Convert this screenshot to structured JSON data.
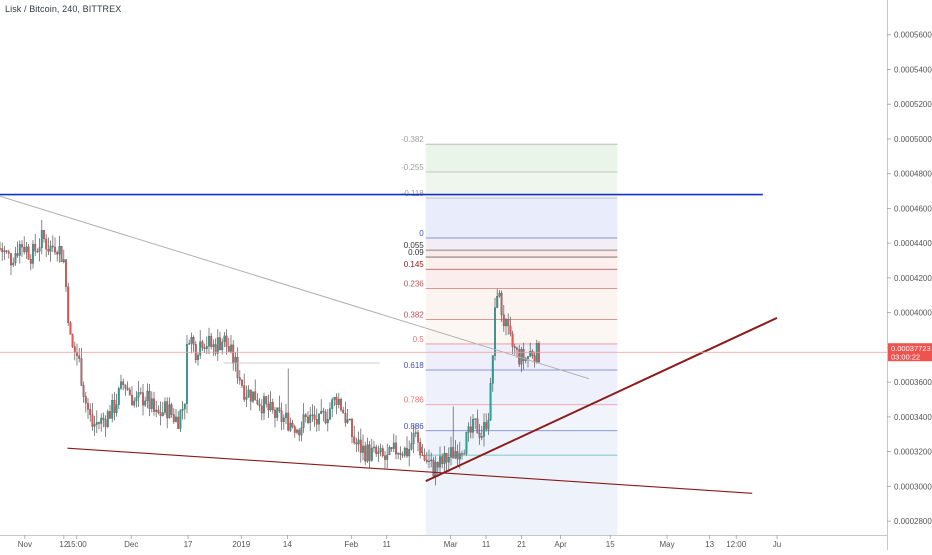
{
  "header": {
    "symbol_title": "Lisk / Bitcoin, 240, BITTREX"
  },
  "colors": {
    "bull": "#26a69a",
    "bear": "#ef5350",
    "candle": "#535353",
    "resistance": "#1530c8",
    "trendline": "#8b1a1a",
    "price_label_bg": "#ef5350"
  },
  "chart_data": {
    "type": "candlestick",
    "y_unit": "BTC",
    "ylim": [
      0.000272,
      0.00058
    ],
    "xlim": [
      "2018-10-25",
      "2019-07-02"
    ],
    "y_ticks": [
      "0.00028000",
      "0.00030000",
      "0.00032000",
      "0.00034000",
      "0.00036000",
      "0.00038000",
      "0.00040000",
      "0.00042000",
      "0.00044000",
      "0.00046000",
      "0.00048000",
      "0.00050000",
      "0.00052000",
      "0.00054000",
      "0.00056000"
    ],
    "x_ticks": [
      {
        "label": "Nov",
        "date": "2018-11-01"
      },
      {
        "label": "12",
        "date": "2018-11-12"
      },
      {
        "label": "15:00",
        "date": "2018-11-15T15:00"
      },
      {
        "label": "Dec",
        "date": "2018-12-01"
      },
      {
        "label": "17",
        "date": "2018-12-17"
      },
      {
        "label": "2019",
        "date": "2019-01-01"
      },
      {
        "label": "14",
        "date": "2019-01-14"
      },
      {
        "label": "Feb",
        "date": "2019-02-01"
      },
      {
        "label": "11",
        "date": "2019-02-11"
      },
      {
        "label": "Mar",
        "date": "2019-03-01"
      },
      {
        "label": "11",
        "date": "2019-03-11"
      },
      {
        "label": "21",
        "date": "2019-03-21"
      },
      {
        "label": "Apr",
        "date": "2019-04-01"
      },
      {
        "label": "15",
        "date": "2019-04-15"
      },
      {
        "label": "May",
        "date": "2019-05-01"
      },
      {
        "label": "13",
        "date": "2019-05-13"
      },
      {
        "label": "12:00",
        "date": "2019-05-20T12:00"
      },
      {
        "label": "Ju",
        "date": "2019-06-01"
      }
    ],
    "price_path": [
      {
        "date": "2018-10-25",
        "close": 0.000437
      },
      {
        "date": "2018-10-28",
        "close": 0.000431
      },
      {
        "date": "2018-10-31",
        "close": 0.00044
      },
      {
        "date": "2018-11-03",
        "close": 0.000433
      },
      {
        "date": "2018-11-06",
        "close": 0.000443
      },
      {
        "date": "2018-11-08",
        "close": 0.000437
      },
      {
        "date": "2018-11-10",
        "close": 0.00044
      },
      {
        "date": "2018-11-12",
        "close": 0.00043
      },
      {
        "date": "2018-11-13",
        "close": 0.000405
      },
      {
        "date": "2018-11-14",
        "close": 0.00038
      },
      {
        "date": "2018-11-16",
        "close": 0.000375
      },
      {
        "date": "2018-11-18",
        "close": 0.00035
      },
      {
        "date": "2018-11-20",
        "close": 0.000335
      },
      {
        "date": "2018-11-23",
        "close": 0.000338
      },
      {
        "date": "2018-11-26",
        "close": 0.000345
      },
      {
        "date": "2018-11-29",
        "close": 0.00036
      },
      {
        "date": "2018-12-02",
        "close": 0.000348
      },
      {
        "date": "2018-12-05",
        "close": 0.000352
      },
      {
        "date": "2018-12-08",
        "close": 0.00034
      },
      {
        "date": "2018-12-11",
        "close": 0.000345
      },
      {
        "date": "2018-12-14",
        "close": 0.000338
      },
      {
        "date": "2018-12-16",
        "close": 0.000348
      },
      {
        "date": "2018-12-17",
        "close": 0.00039
      },
      {
        "date": "2018-12-19",
        "close": 0.000378
      },
      {
        "date": "2018-12-21",
        "close": 0.000385
      },
      {
        "date": "2018-12-24",
        "close": 0.00038
      },
      {
        "date": "2018-12-27",
        "close": 0.000385
      },
      {
        "date": "2018-12-30",
        "close": 0.000372
      },
      {
        "date": "2019-01-02",
        "close": 0.000355
      },
      {
        "date": "2019-01-05",
        "close": 0.000352
      },
      {
        "date": "2019-01-08",
        "close": 0.000345
      },
      {
        "date": "2019-01-11",
        "close": 0.00034
      },
      {
        "date": "2019-01-14",
        "close": 0.000338
      },
      {
        "date": "2019-01-17",
        "close": 0.000334
      },
      {
        "date": "2019-01-20",
        "close": 0.00034
      },
      {
        "date": "2019-01-23",
        "close": 0.000336
      },
      {
        "date": "2019-01-26",
        "close": 0.000345
      },
      {
        "date": "2019-01-28",
        "close": 0.000352
      },
      {
        "date": "2019-01-30",
        "close": 0.000342
      },
      {
        "date": "2019-02-02",
        "close": 0.000325
      },
      {
        "date": "2019-02-05",
        "close": 0.00032
      },
      {
        "date": "2019-02-08",
        "close": 0.000318
      },
      {
        "date": "2019-02-11",
        "close": 0.000315
      },
      {
        "date": "2019-02-14",
        "close": 0.000322
      },
      {
        "date": "2019-02-17",
        "close": 0.00032
      },
      {
        "date": "2019-02-19",
        "close": 0.00033
      },
      {
        "date": "2019-02-21",
        "close": 0.000318
      },
      {
        "date": "2019-02-24",
        "close": 0.00031
      },
      {
        "date": "2019-02-27",
        "close": 0.000314
      },
      {
        "date": "2019-03-02",
        "close": 0.00032
      },
      {
        "date": "2019-03-05",
        "close": 0.000325
      },
      {
        "date": "2019-03-08",
        "close": 0.000335
      },
      {
        "date": "2019-03-10",
        "close": 0.00033
      },
      {
        "date": "2019-03-12",
        "close": 0.000345
      },
      {
        "date": "2019-03-13",
        "close": 0.00038
      },
      {
        "date": "2019-03-14",
        "close": 0.000415
      },
      {
        "date": "2019-03-15",
        "close": 0.000405
      },
      {
        "date": "2019-03-16",
        "close": 0.000395
      },
      {
        "date": "2019-03-17",
        "close": 0.000388
      },
      {
        "date": "2019-03-18",
        "close": 0.000382
      },
      {
        "date": "2019-03-20",
        "close": 0.000375
      },
      {
        "date": "2019-03-22",
        "close": 0.000373
      },
      {
        "date": "2019-03-24",
        "close": 0.000378
      },
      {
        "date": "2019-03-26",
        "close": 0.000376
      }
    ],
    "last_price": {
      "value": 0.00037723,
      "label": "0.00037723",
      "countdown": "03:00:22"
    },
    "fibonacci": {
      "levels": [
        {
          "label": "-0.382",
          "price": 0.000497
        },
        {
          "label": "-0.255",
          "price": 0.000481
        },
        {
          "label": "-0.118",
          "price": 0.000466
        },
        {
          "label": "0",
          "price": 0.000443
        },
        {
          "label": "0.055",
          "price": 0.000436
        },
        {
          "label": "0.09",
          "price": 0.000432
        },
        {
          "label": "0.145",
          "price": 0.000425
        },
        {
          "label": "0.236",
          "price": 0.000414
        },
        {
          "label": "0.382",
          "price": 0.000396
        },
        {
          "label": "0.5",
          "price": 0.000382
        },
        {
          "label": "0.618",
          "price": 0.000367
        },
        {
          "label": "0.786",
          "price": 0.000347
        },
        {
          "label": "0.886",
          "price": 0.000332
        },
        {
          "label": "1",
          "price": 0.000318
        }
      ],
      "start_date": "2019-02-22",
      "end_date": "2019-04-17"
    },
    "lines": {
      "resistance": {
        "price": 0.000468,
        "from": "2018-10-25",
        "to": "2019-05-28"
      },
      "upper_trend": {
        "from": {
          "date": "2018-10-25",
          "price": 0.000467
        },
        "to": {
          "date": "2019-04-09",
          "price": 0.000362
        }
      },
      "lower_trend": {
        "from": {
          "date": "2018-11-13",
          "price": 0.000322
        },
        "to": {
          "date": "2019-05-25",
          "price": 0.000296
        }
      },
      "rising_trend": {
        "from": {
          "date": "2019-02-22",
          "price": 0.000303
        },
        "to": {
          "date": "2019-06-01",
          "price": 0.000397
        }
      },
      "flat_ref": {
        "price": 0.000371,
        "from": "2018-12-27",
        "to": "2019-02-09"
      }
    }
  }
}
